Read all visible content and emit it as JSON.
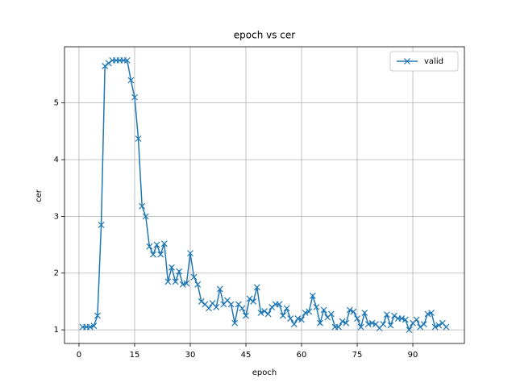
{
  "chart_data": {
    "type": "line",
    "title": "epoch vs cer",
    "x_label": "epoch",
    "y_label": "cer",
    "x": [
      1,
      2,
      3,
      4,
      5,
      6,
      7,
      8,
      9,
      10,
      11,
      12,
      13,
      14,
      15,
      16,
      17,
      18,
      19,
      20,
      21,
      22,
      23,
      24,
      25,
      26,
      27,
      28,
      29,
      30,
      31,
      32,
      33,
      34,
      35,
      36,
      37,
      38,
      39,
      40,
      41,
      42,
      43,
      44,
      45,
      46,
      47,
      48,
      49,
      50,
      51,
      52,
      53,
      54,
      55,
      56,
      57,
      58,
      59,
      60,
      61,
      62,
      63,
      64,
      65,
      66,
      67,
      68,
      69,
      70,
      71,
      72,
      73,
      74,
      75,
      76,
      77,
      78,
      79,
      80,
      81,
      82,
      83,
      84,
      85,
      86,
      87,
      88,
      89,
      90,
      91,
      92,
      93,
      94,
      95,
      96,
      97,
      98,
      99
    ],
    "series": [
      {
        "name": "valid",
        "color": "#1f77b4",
        "marker": "x",
        "values": [
          1.05,
          1.05,
          1.05,
          1.07,
          1.25,
          2.85,
          5.65,
          5.7,
          5.75,
          5.75,
          5.75,
          5.75,
          5.75,
          5.4,
          5.1,
          4.37,
          3.18,
          3.0,
          2.47,
          2.33,
          2.5,
          2.33,
          2.52,
          1.85,
          2.1,
          1.85,
          2.03,
          1.8,
          1.82,
          2.35,
          1.93,
          1.8,
          1.5,
          1.45,
          1.38,
          1.47,
          1.4,
          1.72,
          1.45,
          1.52,
          1.45,
          1.12,
          1.45,
          1.38,
          1.25,
          1.55,
          1.5,
          1.75,
          1.3,
          1.33,
          1.28,
          1.4,
          1.45,
          1.45,
          1.25,
          1.38,
          1.2,
          1.1,
          1.2,
          1.18,
          1.3,
          1.32,
          1.6,
          1.4,
          1.12,
          1.35,
          1.22,
          1.28,
          1.05,
          1.05,
          1.15,
          1.12,
          1.35,
          1.32,
          1.2,
          1.05,
          1.3,
          1.1,
          1.12,
          1.1,
          1.03,
          1.1,
          1.27,
          1.08,
          1.25,
          1.2,
          1.2,
          1.18,
          1.0,
          1.12,
          1.18,
          1.05,
          1.1,
          1.28,
          1.3,
          1.05,
          1.08,
          1.12,
          1.05
        ]
      }
    ],
    "xlim": [
      -3.9,
      103.9
    ],
    "xticks": [
      0,
      15,
      30,
      45,
      60,
      75,
      90
    ],
    "ylim": [
      0.76,
      5.99
    ],
    "yticks": [
      1,
      2,
      3,
      4,
      5
    ],
    "grid": true,
    "legend": "upper right"
  }
}
